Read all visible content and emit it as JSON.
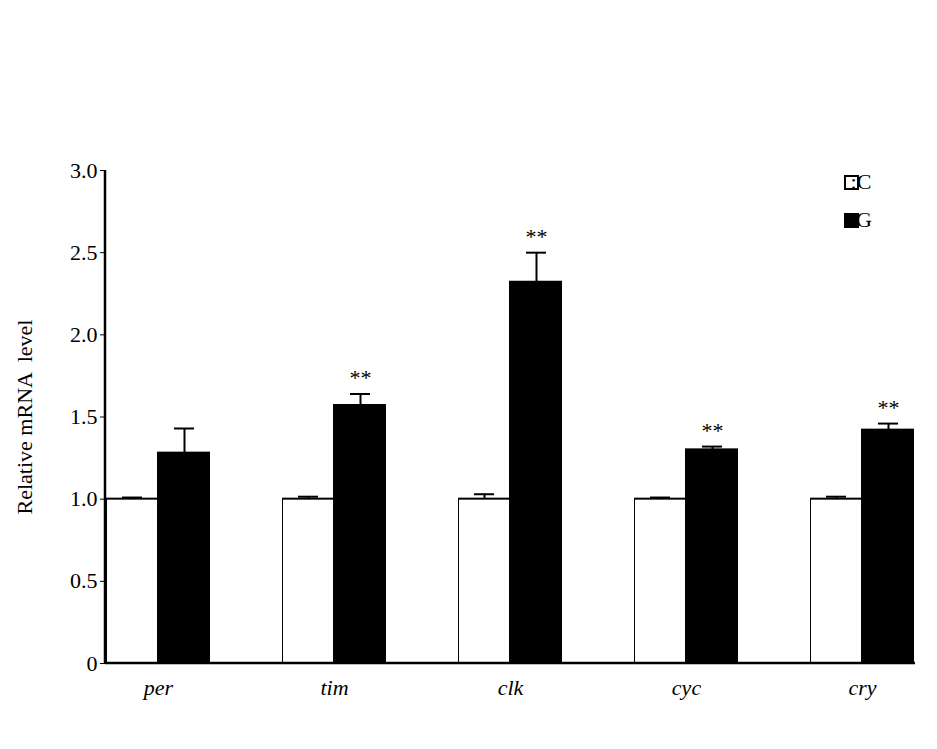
{
  "chart_data": {
    "type": "bar",
    "y_label": "Relative mRNA  level",
    "categories": [
      "per",
      "tim",
      "clk",
      "cyc",
      "cry"
    ],
    "series": [
      {
        "name": ":C",
        "color": "#ffffff",
        "values": [
          1.0,
          1.0,
          1.0,
          1.0,
          1.0
        ],
        "errors": [
          0.01,
          0.015,
          0.03,
          0.01,
          0.015
        ]
      },
      {
        "name": ":G",
        "color": "#000000",
        "values": [
          1.28,
          1.57,
          2.32,
          1.3,
          1.42
        ],
        "errors": [
          0.15,
          0.07,
          0.18,
          0.02,
          0.04
        ],
        "significance": [
          null,
          "**",
          "**",
          "**",
          "**"
        ]
      }
    ],
    "ylim": [
      0,
      3.0
    ],
    "yticks": [
      0,
      0.5,
      {
        "value": 1,
        "label": "1.0"
      },
      1.5,
      {
        "value": 2,
        "label": "2.0"
      },
      2.5,
      {
        "value": 3,
        "label": "3.0"
      }
    ],
    "legend": "top-right",
    "grid": false
  }
}
